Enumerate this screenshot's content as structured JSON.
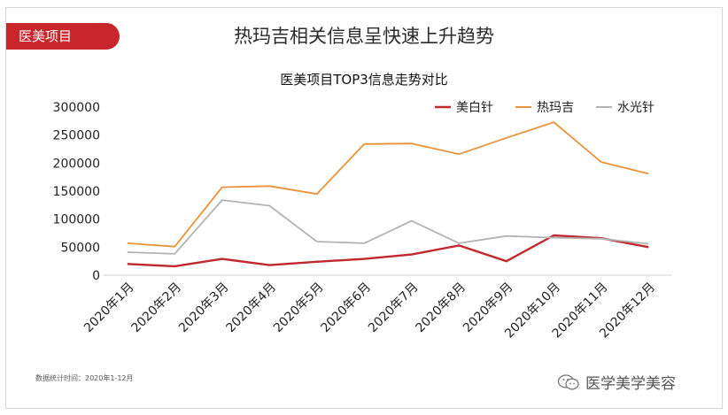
{
  "header": {
    "tag_label": "医美项目",
    "title": "热玛吉相关信息呈快速上升趋势"
  },
  "footnote": "数据统计时间：2020年1-12月",
  "watermark": {
    "text": "医学美学美容",
    "icon": "wechat-icon"
  },
  "chart_data": {
    "type": "line",
    "title": "医美项目TOP3信息走势对比",
    "categories": [
      "2020年1月",
      "2020年2月",
      "2020年3月",
      "2020年4月",
      "2020年5月",
      "2020年6月",
      "2020年7月",
      "2020年8月",
      "2020年9月",
      "2020年10月",
      "2020年11月",
      "2020年12月"
    ],
    "ylim": [
      0,
      300000
    ],
    "yticks": [
      0,
      50000,
      100000,
      150000,
      200000,
      250000,
      300000
    ],
    "grid": false,
    "legend_position": "top-right",
    "series": [
      {
        "name": "美白针",
        "color": "#c0282e",
        "values": [
          20000,
          16000,
          29000,
          18000,
          24000,
          29000,
          37000,
          53000,
          25000,
          71000,
          66000,
          50000
        ]
      },
      {
        "name": "热玛吉",
        "color": "#e8923a",
        "values": [
          57000,
          51000,
          157000,
          159000,
          145000,
          234000,
          235000,
          216000,
          245000,
          273000,
          202000,
          181000
        ]
      },
      {
        "name": "水光针",
        "color": "#b3b3b3",
        "values": [
          41000,
          38000,
          134000,
          124000,
          60000,
          57000,
          97000,
          57000,
          70000,
          67000,
          65000,
          56000
        ]
      }
    ]
  }
}
